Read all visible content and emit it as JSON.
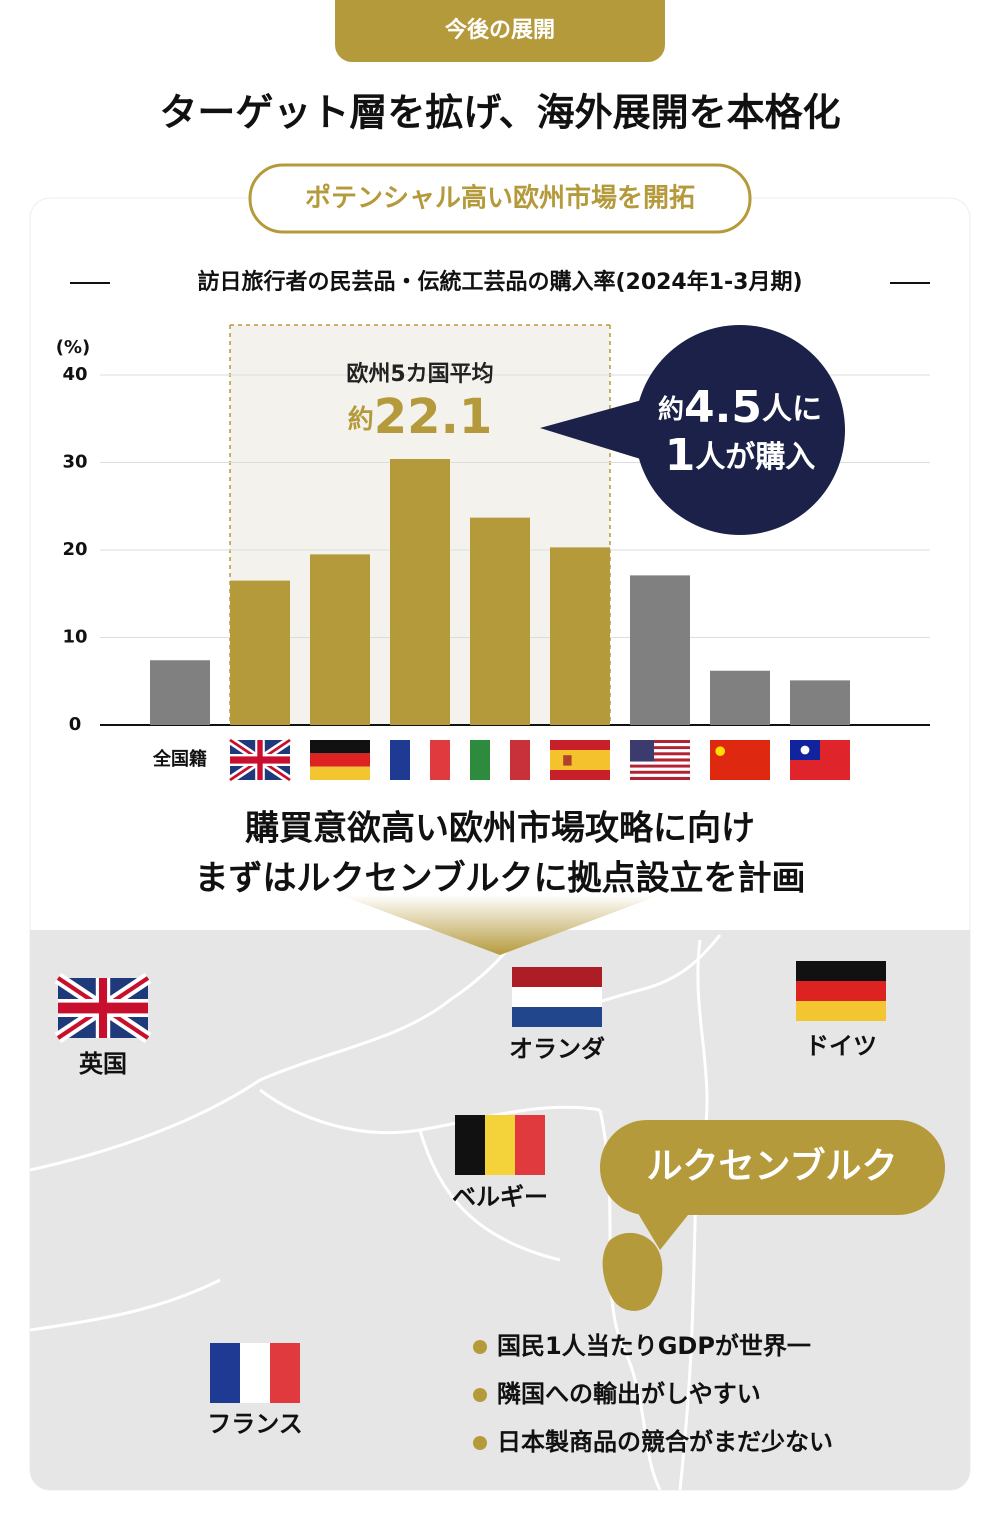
{
  "header": {
    "tag": "今後の展開",
    "title": "ターゲット層を拡げ、海外展開を本格化",
    "pill": "ポテンシャル高い欧州市場を開拓"
  },
  "chart_data": {
    "type": "bar",
    "title": "訪日旅行者の民芸品・伝統工芸品の購入率(2024年1-3月期)",
    "y_unit": "(%)",
    "categories": [
      "全国籍",
      null,
      null,
      null,
      null,
      null,
      null,
      null,
      null
    ],
    "values": [
      7.4,
      16.5,
      19.5,
      30.4,
      23.7,
      20.3,
      17.1,
      6.2,
      5.1
    ],
    "colors": [
      "#808080",
      "#b59a3c",
      "#b59a3c",
      "#b59a3c",
      "#b59a3c",
      "#b59a3c",
      "#808080",
      "#808080",
      "#808080"
    ],
    "ylim": [
      0,
      40
    ],
    "yticks": [
      0,
      10,
      20,
      30,
      40
    ],
    "grid": true,
    "highlight": {
      "label": "欧州5カ国平均",
      "prefix": "約",
      "value": "22.1"
    }
  },
  "callout": {
    "lines": [
      [
        "約",
        "4.5",
        "人に"
      ],
      [
        "1",
        "人が購入"
      ]
    ]
  },
  "message": {
    "lines": [
      "購買意欲高い欧州市場攻略に向け",
      "まずはルクセンブルクに拠点設立を計画"
    ]
  },
  "map": {
    "countries": [
      "英国",
      "オランダ",
      "ドイツ",
      "ベルギー",
      "フランス"
    ],
    "callout": "ルクセンブルク",
    "bullets": [
      "国民1人当たりGDPが世界一",
      "隣国への輸出がしやすい",
      "日本製商品の競合がまだ少ない"
    ]
  }
}
